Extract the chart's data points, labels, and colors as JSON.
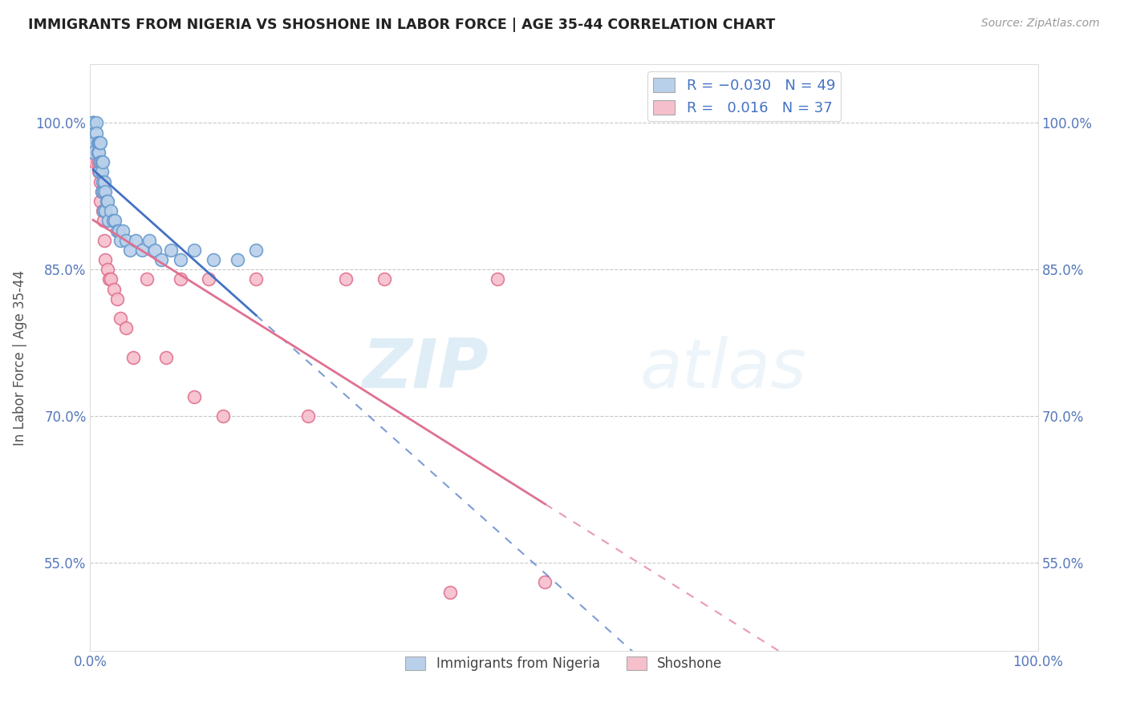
{
  "title": "IMMIGRANTS FROM NIGERIA VS SHOSHONE IN LABOR FORCE | AGE 35-44 CORRELATION CHART",
  "source": "Source: ZipAtlas.com",
  "ylabel": "In Labor Force | Age 35-44",
  "xlim": [
    0.0,
    1.0
  ],
  "ylim": [
    0.46,
    1.06
  ],
  "ytick_labels": [
    "55.0%",
    "70.0%",
    "85.0%",
    "100.0%"
  ],
  "ytick_values": [
    0.55,
    0.7,
    0.85,
    1.0
  ],
  "nigeria_color": "#b8d0ea",
  "nigeria_edge": "#6699cc",
  "shoshone_color": "#f5bfcc",
  "shoshone_edge": "#e07090",
  "trend_nigeria_color": "#4472c4",
  "trend_shoshone_color": "#e07090",
  "watermark_zip": "ZIP",
  "watermark_atlas": "atlas",
  "background_color": "#ffffff",
  "grid_color": "#c8c8c8",
  "nigeria_x": [
    0.003,
    0.003,
    0.003,
    0.003,
    0.003,
    0.003,
    0.006,
    0.006,
    0.008,
    0.008,
    0.009,
    0.009,
    0.01,
    0.01,
    0.011,
    0.011,
    0.012,
    0.012,
    0.012,
    0.013,
    0.013,
    0.014,
    0.014,
    0.015,
    0.016,
    0.016,
    0.017,
    0.018,
    0.019,
    0.022,
    0.024,
    0.026,
    0.028,
    0.03,
    0.032,
    0.034,
    0.038,
    0.042,
    0.048,
    0.055,
    0.062,
    0.068,
    0.075,
    0.085,
    0.095,
    0.11,
    0.13,
    0.155,
    0.175
  ],
  "nigeria_y": [
    1.0,
    1.0,
    1.0,
    1.0,
    0.98,
    0.97,
    1.0,
    0.99,
    0.98,
    0.97,
    0.98,
    0.97,
    0.98,
    0.95,
    0.98,
    0.96,
    0.96,
    0.95,
    0.93,
    0.96,
    0.94,
    0.93,
    0.91,
    0.94,
    0.93,
    0.91,
    0.92,
    0.92,
    0.9,
    0.91,
    0.9,
    0.9,
    0.89,
    0.89,
    0.88,
    0.89,
    0.88,
    0.87,
    0.88,
    0.87,
    0.88,
    0.87,
    0.86,
    0.87,
    0.86,
    0.87,
    0.86,
    0.86,
    0.87
  ],
  "shoshone_x": [
    0.003,
    0.003,
    0.003,
    0.005,
    0.005,
    0.007,
    0.008,
    0.009,
    0.01,
    0.011,
    0.011,
    0.012,
    0.013,
    0.014,
    0.015,
    0.016,
    0.018,
    0.02,
    0.022,
    0.025,
    0.028,
    0.032,
    0.038,
    0.045,
    0.06,
    0.08,
    0.095,
    0.11,
    0.125,
    0.14,
    0.175,
    0.23,
    0.27,
    0.31,
    0.38,
    0.43,
    0.48
  ],
  "shoshone_y": [
    1.0,
    0.98,
    0.97,
    0.98,
    0.96,
    0.97,
    0.96,
    0.95,
    0.96,
    0.94,
    0.92,
    0.93,
    0.91,
    0.9,
    0.88,
    0.86,
    0.85,
    0.84,
    0.84,
    0.83,
    0.82,
    0.8,
    0.79,
    0.76,
    0.84,
    0.76,
    0.84,
    0.72,
    0.84,
    0.7,
    0.84,
    0.7,
    0.84,
    0.84,
    0.52,
    0.84,
    0.53
  ]
}
